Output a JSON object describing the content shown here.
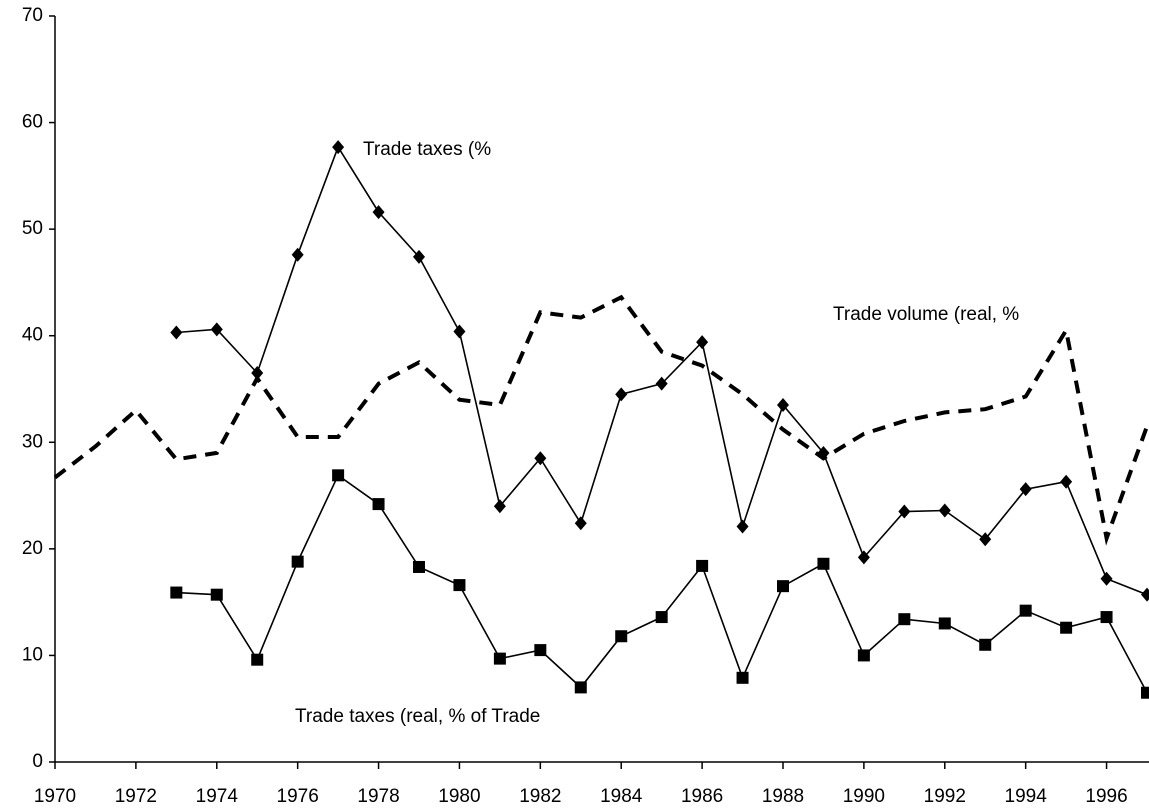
{
  "chart_data": {
    "type": "line",
    "x": [
      1970,
      1971,
      1972,
      1973,
      1974,
      1975,
      1976,
      1977,
      1978,
      1979,
      1980,
      1981,
      1982,
      1983,
      1984,
      1985,
      1986,
      1987,
      1988,
      1989,
      1990,
      1991,
      1992,
      1993,
      1994,
      1995,
      1996,
      1997
    ],
    "series": [
      {
        "name": "Trade taxes (%",
        "color": "#000000",
        "marker": "diamond",
        "dashed": false,
        "values": [
          null,
          null,
          null,
          40.3,
          40.6,
          36.5,
          47.6,
          57.7,
          51.6,
          47.4,
          40.4,
          24.0,
          28.5,
          22.4,
          34.5,
          35.5,
          39.4,
          22.1,
          33.5,
          29.0,
          19.2,
          23.5,
          23.6,
          20.9,
          25.6,
          26.3,
          17.2,
          15.7
        ]
      },
      {
        "name": "Trade taxes (real, % of Trade",
        "color": "#000000",
        "marker": "square",
        "dashed": false,
        "values": [
          null,
          null,
          null,
          15.9,
          15.7,
          9.6,
          18.8,
          26.9,
          24.2,
          18.3,
          16.6,
          9.7,
          10.5,
          7.0,
          11.8,
          13.6,
          18.4,
          7.9,
          16.5,
          18.6,
          10.0,
          13.4,
          13.0,
          11.0,
          14.2,
          12.6,
          13.6,
          6.5
        ]
      },
      {
        "name": "Trade volume (real, %",
        "color": "#000000",
        "marker": "none",
        "dashed": true,
        "values": [
          26.7,
          29.6,
          33.0,
          28.4,
          29.0,
          36.0,
          30.5,
          30.5,
          35.5,
          37.5,
          34.0,
          33.5,
          42.2,
          41.7,
          43.6,
          38.5,
          37.2,
          34.5,
          31.2,
          28.5,
          30.8,
          32.0,
          32.8,
          33.1,
          34.3,
          40.5,
          21.0,
          31.5
        ]
      }
    ],
    "xlim": [
      1970,
      1997
    ],
    "xticks": [
      1970,
      1972,
      1974,
      1976,
      1978,
      1980,
      1982,
      1984,
      1986,
      1988,
      1990,
      1992,
      1994,
      1996
    ],
    "ylim": [
      0,
      70
    ],
    "yticks": [
      0,
      10,
      20,
      30,
      40,
      50,
      60,
      70
    ],
    "grid": false
  }
}
